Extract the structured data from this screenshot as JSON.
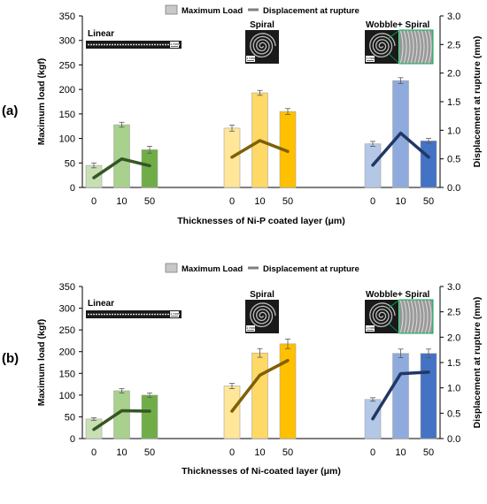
{
  "chart_data": [
    {
      "type": "bar",
      "panel_label": "(a)",
      "groups": [
        {
          "name": "Linear",
          "categories": [
            "0",
            "10",
            "50"
          ]
        },
        {
          "name": "Spiral",
          "categories": [
            "0",
            "10",
            "50"
          ]
        },
        {
          "name": "Wobble+ Spiral",
          "categories": [
            "0",
            "10",
            "50"
          ]
        }
      ],
      "series": [
        {
          "name": "Maximum Load",
          "axis": "left",
          "values": [
            [
              45,
              128,
              77
            ],
            [
              121,
              193,
              155
            ],
            [
              89,
              218,
              95
            ]
          ],
          "errors": [
            [
              5,
              5,
              7
            ],
            [
              6,
              5,
              6
            ],
            [
              5,
              6,
              5
            ]
          ]
        },
        {
          "name": "Displacement at rupture",
          "axis": "right",
          "values": [
            [
              0.17,
              0.5,
              0.38
            ],
            [
              0.53,
              0.82,
              0.63
            ],
            [
              0.39,
              0.95,
              0.53
            ]
          ]
        }
      ],
      "xlabel": "Thicknesses of Ni-P coated layer (μm)",
      "ylabel": "Maximum load (kgf)",
      "y2label": "Displacement at rupture (mm)",
      "ylim": [
        0,
        350
      ],
      "yticks": [
        "0",
        "50",
        "100",
        "150",
        "200",
        "250",
        "300",
        "350"
      ],
      "y2lim": [
        0,
        3
      ],
      "y2ticks": [
        "0.0",
        "0.5",
        "1.0",
        "1.5",
        "2.0",
        "2.5",
        "3.0"
      ],
      "legend_position": "top-center",
      "grid": false,
      "scale_bar_label": "1 mm",
      "colors": {
        "group0": [
          "#c6e0b4",
          "#a9d18e",
          "#70ad47"
        ],
        "group1": [
          "#ffe699",
          "#ffd966",
          "#ffc000"
        ],
        "group2": [
          "#b4c7e7",
          "#8faadc",
          "#4472c4"
        ],
        "lines": [
          "#375623",
          "#7f6000",
          "#203864"
        ]
      }
    },
    {
      "type": "bar",
      "panel_label": "(b)",
      "groups": [
        {
          "name": "Linear",
          "categories": [
            "0",
            "10",
            "50"
          ]
        },
        {
          "name": "Spiral",
          "categories": [
            "0",
            "10",
            "50"
          ]
        },
        {
          "name": "Wobble+ Spiral",
          "categories": [
            "0",
            "10",
            "50"
          ]
        }
      ],
      "series": [
        {
          "name": "Maximum Load",
          "axis": "left",
          "values": [
            [
              45,
              110,
              100
            ],
            [
              121,
              197,
              218
            ],
            [
              90,
              196,
              196
            ]
          ],
          "errors": [
            [
              3,
              5,
              5
            ],
            [
              6,
              10,
              11
            ],
            [
              4,
              10,
              10
            ]
          ]
        },
        {
          "name": "Displacement at rupture",
          "axis": "right",
          "values": [
            [
              0.18,
              0.55,
              0.54
            ],
            [
              0.54,
              1.25,
              1.54
            ],
            [
              0.39,
              1.28,
              1.31
            ]
          ]
        }
      ],
      "xlabel": "Thicknesses of Ni-coated layer (μm)",
      "ylabel": "Maximum load (kgf)",
      "y2label": "Displacement at rupture (mm)",
      "ylim": [
        0,
        350
      ],
      "yticks": [
        "0",
        "50",
        "100",
        "150",
        "200",
        "250",
        "300",
        "350"
      ],
      "y2lim": [
        0,
        3
      ],
      "y2ticks": [
        "0.0",
        "0.5",
        "1.0",
        "1.5",
        "2.0",
        "2.5",
        "3.0"
      ],
      "legend_position": "top-center",
      "grid": false,
      "scale_bar_label": "1 mm",
      "colors": {
        "group0": [
          "#c6e0b4",
          "#a9d18e",
          "#70ad47"
        ],
        "group1": [
          "#ffe699",
          "#ffd966",
          "#ffc000"
        ],
        "group2": [
          "#b4c7e7",
          "#8faadc",
          "#4472c4"
        ],
        "lines": [
          "#375623",
          "#7f6000",
          "#203864"
        ]
      }
    }
  ]
}
